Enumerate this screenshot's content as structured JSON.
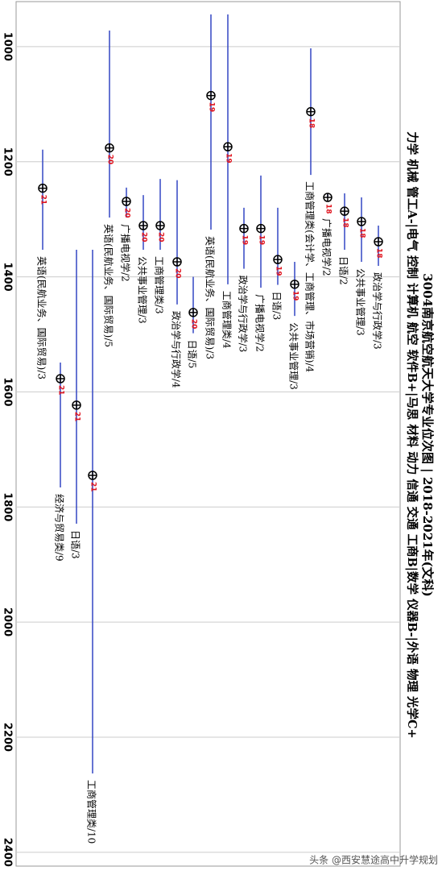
{
  "chart_data": {
    "type": "range",
    "title": "3004南京航空航天大学专业位次图 | 2018-2021年(文科)",
    "subtitle": "力学 机械 管工A-|电气 控制 计算机 航空 软件B+|马思 材料 动力 信通 交通 工商B|数学 仪器B-|外语 物理 光学C+",
    "watermark": "头条 @西安慧途高中升学规划",
    "ylim": [
      919,
      2424
    ],
    "yticks": [
      1000,
      1200,
      1400,
      1600,
      1800,
      2000,
      2200,
      2400
    ],
    "grid": true,
    "line_color": "#3347c4",
    "label_color": "#e0141e",
    "categories": [
      "英语(民航业务、国际贸易)/3",
      "经济与贸易类/9",
      "日语/3",
      "工商管理类/10",
      "英语(民航业务、国际贸易)/5",
      "广播电视学/2",
      "公共事业管理/3",
      "工商管理类/3",
      "政治学与行政学/4",
      "日语/5",
      "英语(民航业务、国际贸易)/3",
      "工商管理类/4",
      "政治学与行政学/3",
      "广播电视学/2",
      "日语/3",
      "公共事业管理/3",
      "工商管理类(会计学、工商管理、市场营销)/4",
      "广播电视学/2",
      "日语/2",
      "公共事业管理/3",
      "政治学与行政学/3"
    ],
    "year_labels": [
      "21",
      "21",
      "21",
      "21",
      "20",
      "20",
      "20",
      "20",
      "20",
      "20",
      "19",
      "19",
      "19",
      "19",
      "19",
      "19",
      "18",
      "18",
      "18",
      "18",
      "18"
    ],
    "values": [
      1246,
      1577,
      1623,
      1745,
      1176,
      1269,
      1311,
      1311,
      1374,
      1462,
      1085,
      1174,
      1316,
      1316,
      1370,
      1413,
      1113,
      1262,
      1286,
      1304,
      1339
    ],
    "lows": [
      1179,
      1549,
      1353,
      1353,
      972,
      1245,
      1258,
      1230,
      1232,
      1400,
      944,
      944,
      1280,
      1224,
      1280,
      1374,
      1003,
      1255,
      1255,
      1262,
      1311
    ],
    "highs": [
      1353,
      1766,
      1829,
      2263,
      1297,
      1297,
      1353,
      1353,
      1448,
      1498,
      1318,
      1413,
      1386,
      1419,
      1414,
      1468,
      1223,
      1262,
      1353,
      1374,
      1381
    ]
  }
}
